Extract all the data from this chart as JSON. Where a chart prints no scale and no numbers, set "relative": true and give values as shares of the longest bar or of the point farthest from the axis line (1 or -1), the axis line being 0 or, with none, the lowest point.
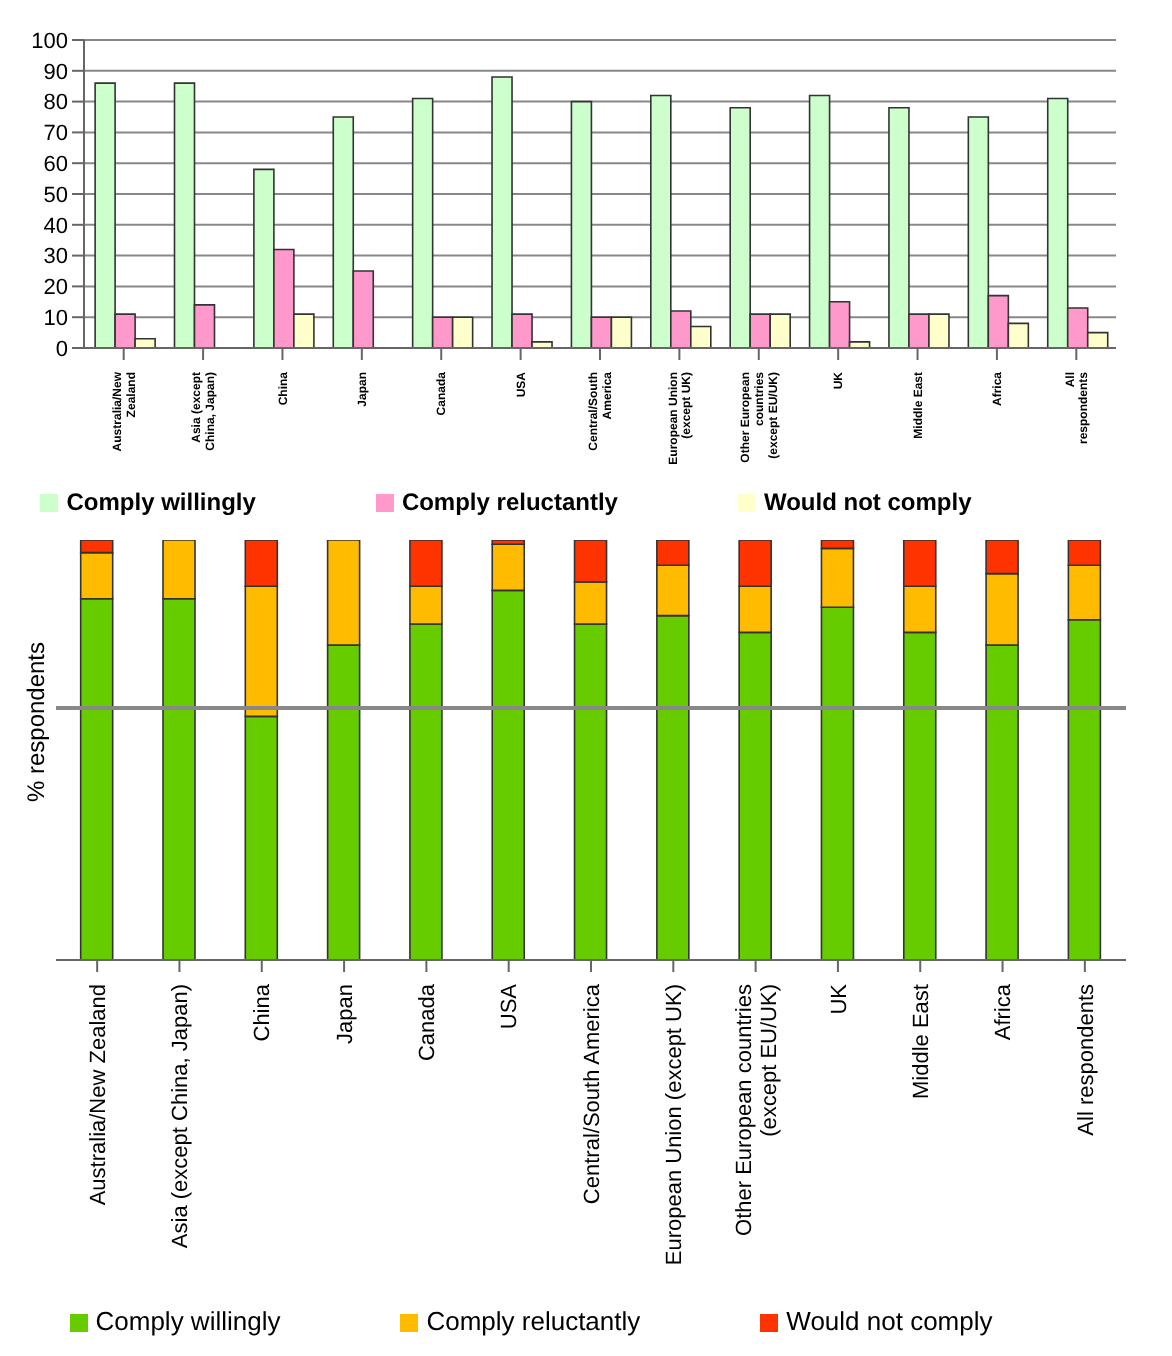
{
  "chart_data": [
    {
      "type": "bar",
      "categories": [
        "Australia/New Zealand",
        "Asia (except China, Japan)",
        "China",
        "Japan",
        "Canada",
        "USA",
        "Central/South America",
        "European Union (except UK)",
        "Other European countries (except EU/UK)",
        "UK",
        "Middle East",
        "Africa",
        "All respondents"
      ],
      "series": [
        {
          "name": "Comply willingly",
          "color": "#ccffcc",
          "values": [
            86,
            86,
            58,
            75,
            81,
            88,
            80,
            82,
            78,
            82,
            78,
            75,
            81
          ]
        },
        {
          "name": "Comply reluctantly",
          "color": "#ff99cc",
          "values": [
            11,
            14,
            32,
            25,
            10,
            11,
            10,
            12,
            11,
            15,
            11,
            17,
            13
          ]
        },
        {
          "name": "Would not comply",
          "color": "#ffffcc",
          "values": [
            3,
            0,
            11,
            0,
            10,
            2,
            10,
            7,
            11,
            2,
            11,
            8,
            5
          ]
        }
      ],
      "ylim": [
        0,
        100
      ],
      "yticks": [
        0,
        10,
        20,
        30,
        40,
        50,
        60,
        70,
        80,
        90,
        100
      ],
      "grid": "y",
      "legend": "bottom"
    },
    {
      "type": "bar",
      "ylabel": "% respondents",
      "stacked": true,
      "relative": true,
      "categories": [
        "Australia/New Zealand",
        "Asia (except China, Japan)",
        "China",
        "Japan",
        "Canada",
        "USA",
        "Central/South America",
        "European Union (except UK)",
        "Other European countries (except EU/UK)",
        "UK",
        "Middle East",
        "Africa",
        "All respondents"
      ],
      "series": [
        {
          "name": "Comply willingly",
          "color": "#66cc00",
          "values": [
            0.86,
            0.86,
            0.58,
            0.75,
            0.8,
            0.88,
            0.8,
            0.82,
            0.78,
            0.84,
            0.78,
            0.75,
            0.81
          ]
        },
        {
          "name": "Comply reluctantly",
          "color": "#ffbb00",
          "values": [
            0.11,
            0.14,
            0.31,
            0.25,
            0.09,
            0.11,
            0.1,
            0.12,
            0.11,
            0.14,
            0.11,
            0.17,
            0.13
          ]
        },
        {
          "name": "Would not comply",
          "color": "#ff3300",
          "values": [
            0.03,
            0,
            0.11,
            0,
            0.11,
            0.01,
            0.1,
            0.06,
            0.11,
            0.02,
            0.11,
            0.08,
            0.06
          ]
        }
      ],
      "ref_lines": [
        {
          "axis": "y",
          "value": 0.6,
          "color": "#888888"
        }
      ],
      "legend": "bottom"
    }
  ]
}
